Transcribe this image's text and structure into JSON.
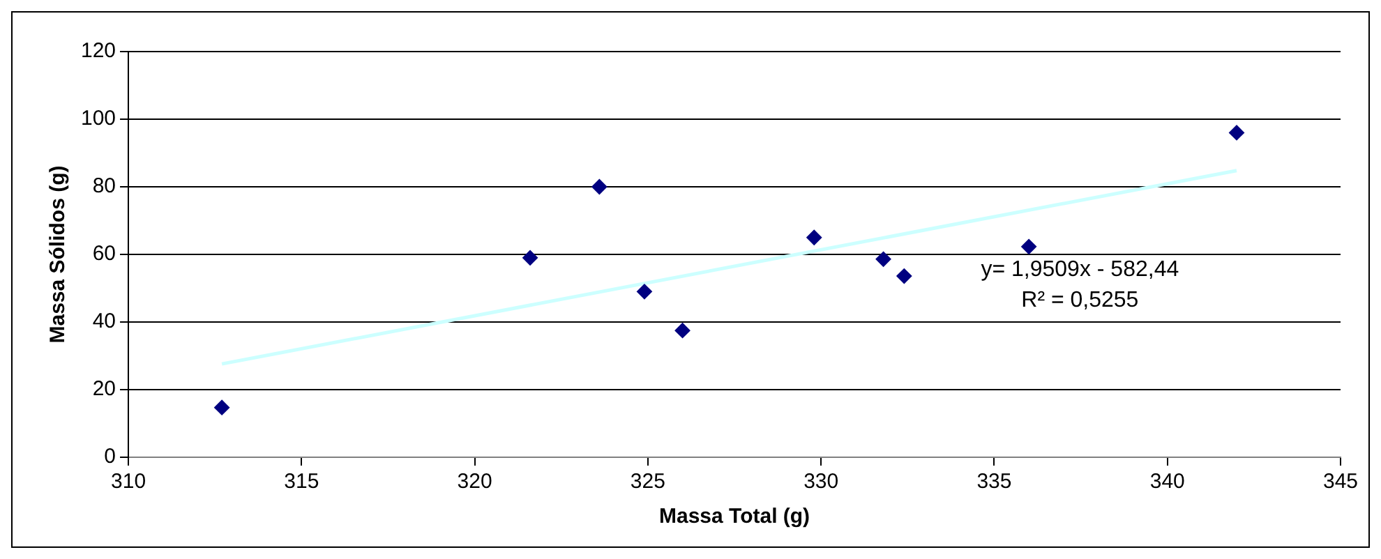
{
  "chart_data": {
    "type": "scatter",
    "xlabel": "Massa Total (g)",
    "ylabel": "Massa Sólidos (g)",
    "series": [
      {
        "marker": "diamond",
        "color": "#000080",
        "x": [
          312.7,
          321.6,
          323.6,
          324.9,
          326.0,
          329.8,
          331.8,
          332.4,
          336.0,
          342.0
        ],
        "values": [
          14.7,
          59,
          80,
          49,
          37.5,
          65,
          58.6,
          53.6,
          62.3,
          96
        ]
      },
      {
        "type": "line",
        "color": "#ccffff",
        "x": [
          312.7,
          342.0
        ],
        "values": [
          27.6,
          84.8
        ]
      }
    ],
    "annotations": [
      "y= 1,9509x - 582,44",
      "R² = 0,5255"
    ],
    "xlim": [
      310,
      345
    ],
    "xticks": [
      310,
      315,
      320,
      325,
      330,
      335,
      340,
      345
    ],
    "ylim": [
      0,
      120
    ],
    "yticks": [
      0,
      20,
      40,
      60,
      80,
      100,
      120
    ],
    "grid": "y",
    "legend": false
  }
}
